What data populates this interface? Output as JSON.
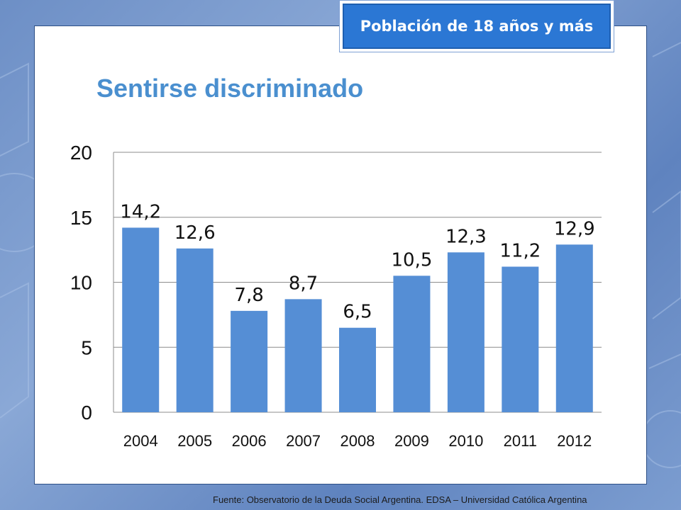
{
  "badge": "Población de 18 años y más",
  "footer": "Fuente:  Observatorio de  la Deuda Social Argentina. EDSA – Universidad Católica Argentina",
  "colors": {
    "bar": "#558ed5",
    "title": "#4a8fcf",
    "badge": "#2b77d4"
  },
  "chart_data": {
    "type": "bar",
    "title": "Sentirse discriminado",
    "xlabel": "",
    "ylabel": "",
    "categories": [
      "2004",
      "2005",
      "2006",
      "2007",
      "2008",
      "2009",
      "2010",
      "2011",
      "2012"
    ],
    "values": [
      14.2,
      12.6,
      7.8,
      8.7,
      6.5,
      10.5,
      12.3,
      11.2,
      12.9
    ],
    "value_labels": [
      "14,2",
      "12,6",
      "7,8",
      "8,7",
      "6,5",
      "10,5",
      "12,3",
      "11,2",
      "12,9"
    ],
    "ylim": [
      0,
      20
    ],
    "yticks": [
      "0",
      "5",
      "10",
      "15",
      "20"
    ],
    "grid": true,
    "legend": "none"
  }
}
